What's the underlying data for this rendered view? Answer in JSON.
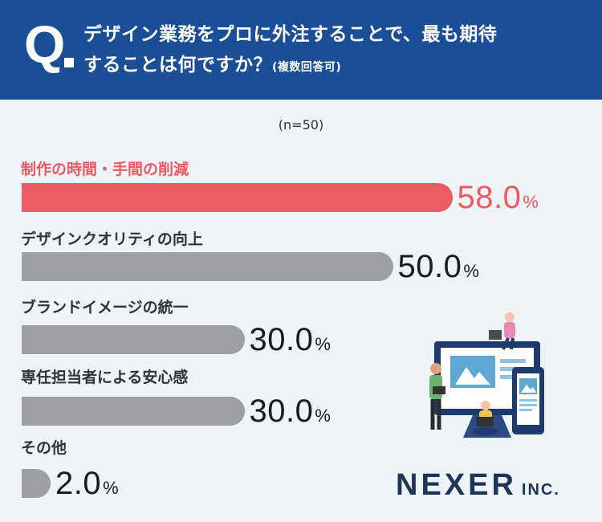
{
  "header": {
    "q_mark": "Q",
    "question_line1": "デザイン業務をプロに外注することで、最も期待",
    "question_line2": "することは何ですか？",
    "question_note": "(複数回答可)"
  },
  "sample_size": "(n=50)",
  "chart_data": {
    "type": "bar",
    "orientation": "horizontal",
    "categories": [
      "制作の時間・手間の削減",
      "デザインクオリティの向上",
      "ブランドイメージの統一",
      "専任担当者による安心感",
      "その他"
    ],
    "values": [
      58.0,
      50.0,
      30.0,
      30.0,
      2.0
    ],
    "value_labels": [
      "58.0",
      "50.0",
      "30.0",
      "30.0",
      "2.0"
    ],
    "unit": "%",
    "highlight_index": 0,
    "highlight_color": "#ee5a62",
    "bar_color": "#9d9fa4",
    "xlim": [
      0,
      100
    ]
  },
  "logo": {
    "main": "NEXER",
    "sub": "INC."
  },
  "colors": {
    "header_bg": "#1a4e96",
    "background": "#eef3f8"
  }
}
